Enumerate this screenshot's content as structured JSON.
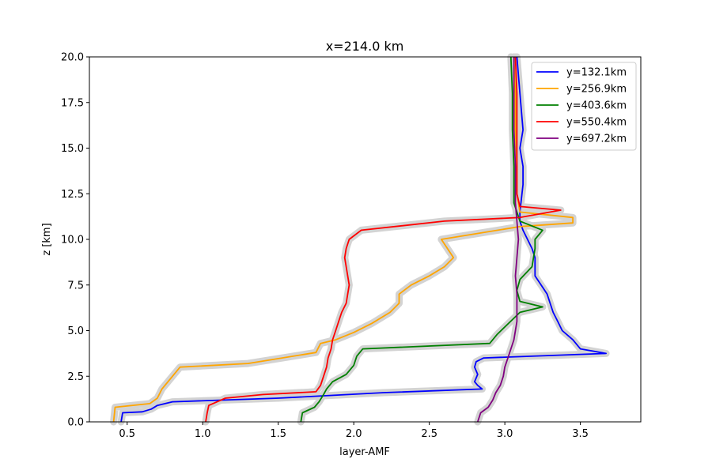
{
  "chart_data": {
    "type": "line",
    "title": "x=214.0 km",
    "xlabel": "layer-AMF",
    "ylabel": "z [km]",
    "xlim": [
      0.25,
      3.9
    ],
    "ylim": [
      0,
      20
    ],
    "xticks": [
      "0.5",
      "1.0",
      "1.5",
      "2.0",
      "2.5",
      "3.0",
      "3.5"
    ],
    "yticks": [
      "0.0",
      "2.5",
      "5.0",
      "7.5",
      "10.0",
      "12.5",
      "15.0",
      "17.5",
      "20.0"
    ],
    "legend_position": "top-right",
    "band_color": "#d3d3d3",
    "series": [
      {
        "name": "y=132.1km",
        "color": "#0000ff",
        "points": [
          [
            0.46,
            0
          ],
          [
            0.47,
            0.5
          ],
          [
            0.6,
            0.55
          ],
          [
            0.66,
            0.7
          ],
          [
            0.7,
            0.9
          ],
          [
            0.8,
            1.1
          ],
          [
            1.5,
            1.3
          ],
          [
            2.2,
            1.6
          ],
          [
            2.85,
            1.8
          ],
          [
            2.82,
            2.0
          ],
          [
            2.8,
            2.2
          ],
          [
            2.82,
            2.6
          ],
          [
            2.8,
            3.0
          ],
          [
            2.81,
            3.3
          ],
          [
            2.86,
            3.5
          ],
          [
            3.67,
            3.75
          ],
          [
            3.5,
            4.0
          ],
          [
            3.45,
            4.5
          ],
          [
            3.38,
            5.0
          ],
          [
            3.35,
            5.5
          ],
          [
            3.32,
            6.0
          ],
          [
            3.3,
            6.5
          ],
          [
            3.28,
            7.0
          ],
          [
            3.24,
            7.5
          ],
          [
            3.2,
            8.0
          ],
          [
            3.2,
            9.0
          ],
          [
            3.18,
            9.5
          ],
          [
            3.15,
            10.0
          ],
          [
            3.12,
            10.5
          ],
          [
            3.1,
            11.0
          ],
          [
            3.1,
            11.5
          ],
          [
            3.12,
            13.0
          ],
          [
            3.12,
            14.0
          ],
          [
            3.1,
            15.0
          ],
          [
            3.12,
            16.0
          ],
          [
            3.1,
            18.0
          ],
          [
            3.08,
            20.0
          ]
        ]
      },
      {
        "name": "y=256.9km",
        "color": "#ffa500",
        "points": [
          [
            0.41,
            0
          ],
          [
            0.42,
            0.8
          ],
          [
            0.65,
            1.0
          ],
          [
            0.7,
            1.3
          ],
          [
            0.73,
            1.8
          ],
          [
            0.8,
            2.5
          ],
          [
            0.85,
            3.0
          ],
          [
            1.3,
            3.2
          ],
          [
            1.75,
            3.8
          ],
          [
            1.78,
            4.3
          ],
          [
            1.88,
            4.5
          ],
          [
            2.0,
            4.9
          ],
          [
            2.12,
            5.4
          ],
          [
            2.24,
            6.0
          ],
          [
            2.3,
            6.5
          ],
          [
            2.3,
            7.0
          ],
          [
            2.38,
            7.5
          ],
          [
            2.5,
            8.0
          ],
          [
            2.6,
            8.5
          ],
          [
            2.66,
            9.0
          ],
          [
            2.62,
            9.5
          ],
          [
            2.58,
            10.0
          ],
          [
            3.1,
            10.7
          ],
          [
            3.45,
            10.9
          ],
          [
            3.45,
            11.2
          ],
          [
            3.1,
            11.5
          ],
          [
            3.08,
            12.5
          ],
          [
            3.08,
            14.0
          ],
          [
            3.07,
            16.0
          ],
          [
            3.07,
            18.0
          ],
          [
            3.06,
            20.0
          ]
        ]
      },
      {
        "name": "y=403.6km",
        "color": "#008000",
        "points": [
          [
            1.65,
            0
          ],
          [
            1.66,
            0.5
          ],
          [
            1.74,
            0.8
          ],
          [
            1.77,
            1.1
          ],
          [
            1.8,
            1.5
          ],
          [
            1.82,
            1.8
          ],
          [
            1.86,
            2.2
          ],
          [
            1.95,
            2.6
          ],
          [
            2.0,
            3.1
          ],
          [
            2.02,
            3.6
          ],
          [
            2.06,
            4.0
          ],
          [
            2.9,
            4.3
          ],
          [
            2.95,
            4.8
          ],
          [
            3.0,
            5.2
          ],
          [
            3.05,
            5.6
          ],
          [
            3.1,
            6.0
          ],
          [
            3.25,
            6.3
          ],
          [
            3.1,
            6.6
          ],
          [
            3.08,
            7.2
          ],
          [
            3.1,
            7.8
          ],
          [
            3.18,
            8.5
          ],
          [
            3.2,
            9.5
          ],
          [
            3.2,
            10.0
          ],
          [
            3.25,
            10.5
          ],
          [
            3.1,
            11.0
          ],
          [
            3.06,
            12.0
          ],
          [
            3.06,
            14.0
          ],
          [
            3.05,
            16.0
          ],
          [
            3.05,
            18.0
          ],
          [
            3.04,
            20.0
          ]
        ]
      },
      {
        "name": "y=550.4km",
        "color": "#ff0000",
        "points": [
          [
            1.02,
            0
          ],
          [
            1.03,
            0.5
          ],
          [
            1.04,
            0.9
          ],
          [
            1.15,
            1.3
          ],
          [
            1.4,
            1.5
          ],
          [
            1.75,
            1.65
          ],
          [
            1.78,
            2.0
          ],
          [
            1.8,
            2.5
          ],
          [
            1.82,
            3.0
          ],
          [
            1.83,
            3.5
          ],
          [
            1.85,
            4.0
          ],
          [
            1.86,
            4.5
          ],
          [
            1.88,
            5.0
          ],
          [
            1.9,
            5.5
          ],
          [
            1.92,
            6.0
          ],
          [
            1.95,
            6.5
          ],
          [
            1.96,
            7.0
          ],
          [
            1.97,
            7.5
          ],
          [
            1.96,
            8.0
          ],
          [
            1.95,
            8.5
          ],
          [
            1.94,
            9.0
          ],
          [
            1.95,
            9.5
          ],
          [
            1.97,
            10.0
          ],
          [
            2.05,
            10.5
          ],
          [
            2.6,
            11.0
          ],
          [
            3.1,
            11.2
          ],
          [
            3.37,
            11.6
          ],
          [
            3.1,
            11.8
          ],
          [
            3.08,
            12.5
          ],
          [
            3.08,
            14.0
          ],
          [
            3.08,
            16.0
          ],
          [
            3.08,
            18.0
          ],
          [
            3.07,
            20.0
          ]
        ]
      },
      {
        "name": "y=697.2km",
        "color": "#800080",
        "points": [
          [
            2.82,
            0
          ],
          [
            2.84,
            0.5
          ],
          [
            2.89,
            0.8
          ],
          [
            2.92,
            1.2
          ],
          [
            2.94,
            1.6
          ],
          [
            2.97,
            2.0
          ],
          [
            2.99,
            2.5
          ],
          [
            3.0,
            3.0
          ],
          [
            3.02,
            3.5
          ],
          [
            3.04,
            4.0
          ],
          [
            3.06,
            4.5
          ],
          [
            3.07,
            5.0
          ],
          [
            3.08,
            5.5
          ],
          [
            3.08,
            6.0
          ],
          [
            3.08,
            7.0
          ],
          [
            3.07,
            8.0
          ],
          [
            3.08,
            9.0
          ],
          [
            3.09,
            10.0
          ],
          [
            3.08,
            11.0
          ],
          [
            3.07,
            12.0
          ],
          [
            3.07,
            14.0
          ],
          [
            3.06,
            16.0
          ],
          [
            3.06,
            18.0
          ],
          [
            3.06,
            20.0
          ]
        ]
      }
    ]
  }
}
